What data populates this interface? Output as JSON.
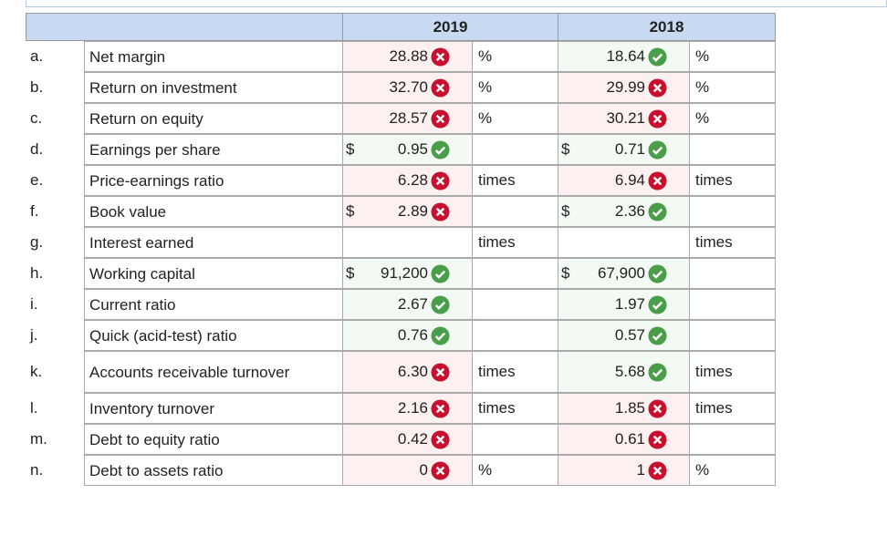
{
  "header": {
    "col_2019": "2019",
    "col_2018": "2018"
  },
  "rows": [
    {
      "letter": "a.",
      "label": "Net margin",
      "y2019": {
        "value": "28.88",
        "correct": false,
        "unit": "%"
      },
      "y2018": {
        "value": "18.64",
        "correct": true,
        "unit": "%"
      }
    },
    {
      "letter": "b.",
      "label": "Return on investment",
      "y2019": {
        "value": "32.70",
        "correct": false,
        "unit": "%"
      },
      "y2018": {
        "value": "29.99",
        "correct": false,
        "unit": "%"
      }
    },
    {
      "letter": "c.",
      "label": "Return on equity",
      "y2019": {
        "value": "28.57",
        "correct": false,
        "unit": "%"
      },
      "y2018": {
        "value": "30.21",
        "correct": false,
        "unit": "%"
      }
    },
    {
      "letter": "d.",
      "label": "Earnings per share",
      "y2019": {
        "dollar": "$",
        "value": "0.95",
        "correct": true
      },
      "y2018": {
        "dollar": "$",
        "value": "0.71",
        "correct": true
      }
    },
    {
      "letter": "e.",
      "label": "Price-earnings ratio",
      "y2019": {
        "value": "6.28",
        "correct": false,
        "unit": "times"
      },
      "y2018": {
        "value": "6.94",
        "correct": false,
        "unit": "times"
      }
    },
    {
      "letter": "f.",
      "label": "Book value",
      "y2019": {
        "dollar": "$",
        "value": "2.89",
        "correct": false
      },
      "y2018": {
        "dollar": "$",
        "value": "2.36",
        "correct": true
      }
    },
    {
      "letter": "g.",
      "label": "Interest earned",
      "y2019": {
        "unit": "times"
      },
      "y2018": {
        "unit": "times"
      }
    },
    {
      "letter": "h.",
      "label": "Working capital",
      "y2019": {
        "dollar": "$",
        "value": "91,200",
        "correct": true
      },
      "y2018": {
        "dollar": "$",
        "value": "67,900",
        "correct": true
      }
    },
    {
      "letter": "i.",
      "label": "Current ratio",
      "y2019": {
        "value": "2.67",
        "correct": true
      },
      "y2018": {
        "value": "1.97",
        "correct": true
      }
    },
    {
      "letter": "j.",
      "label": "Quick (acid-test) ratio",
      "y2019": {
        "value": "0.76",
        "correct": true
      },
      "y2018": {
        "value": "0.57",
        "correct": true
      }
    },
    {
      "letter": "k.",
      "label": "Accounts receivable turnover",
      "y2019": {
        "value": "6.30",
        "correct": false,
        "unit": "times"
      },
      "y2018": {
        "value": "5.68",
        "correct": true,
        "unit": "times"
      }
    },
    {
      "letter": "l.",
      "label": "Inventory turnover",
      "y2019": {
        "value": "2.16",
        "correct": false,
        "unit": "times"
      },
      "y2018": {
        "value": "1.85",
        "correct": false,
        "unit": "times"
      }
    },
    {
      "letter": "m.",
      "label": "Debt to equity ratio",
      "y2019": {
        "value": "0.42",
        "correct": false
      },
      "y2018": {
        "value": "0.61",
        "correct": false
      }
    },
    {
      "letter": "n.",
      "label": "Debt to assets ratio",
      "y2019": {
        "value": "0",
        "correct": false,
        "unit": "%"
      },
      "y2018": {
        "value": "1",
        "correct": false,
        "unit": "%"
      }
    }
  ]
}
